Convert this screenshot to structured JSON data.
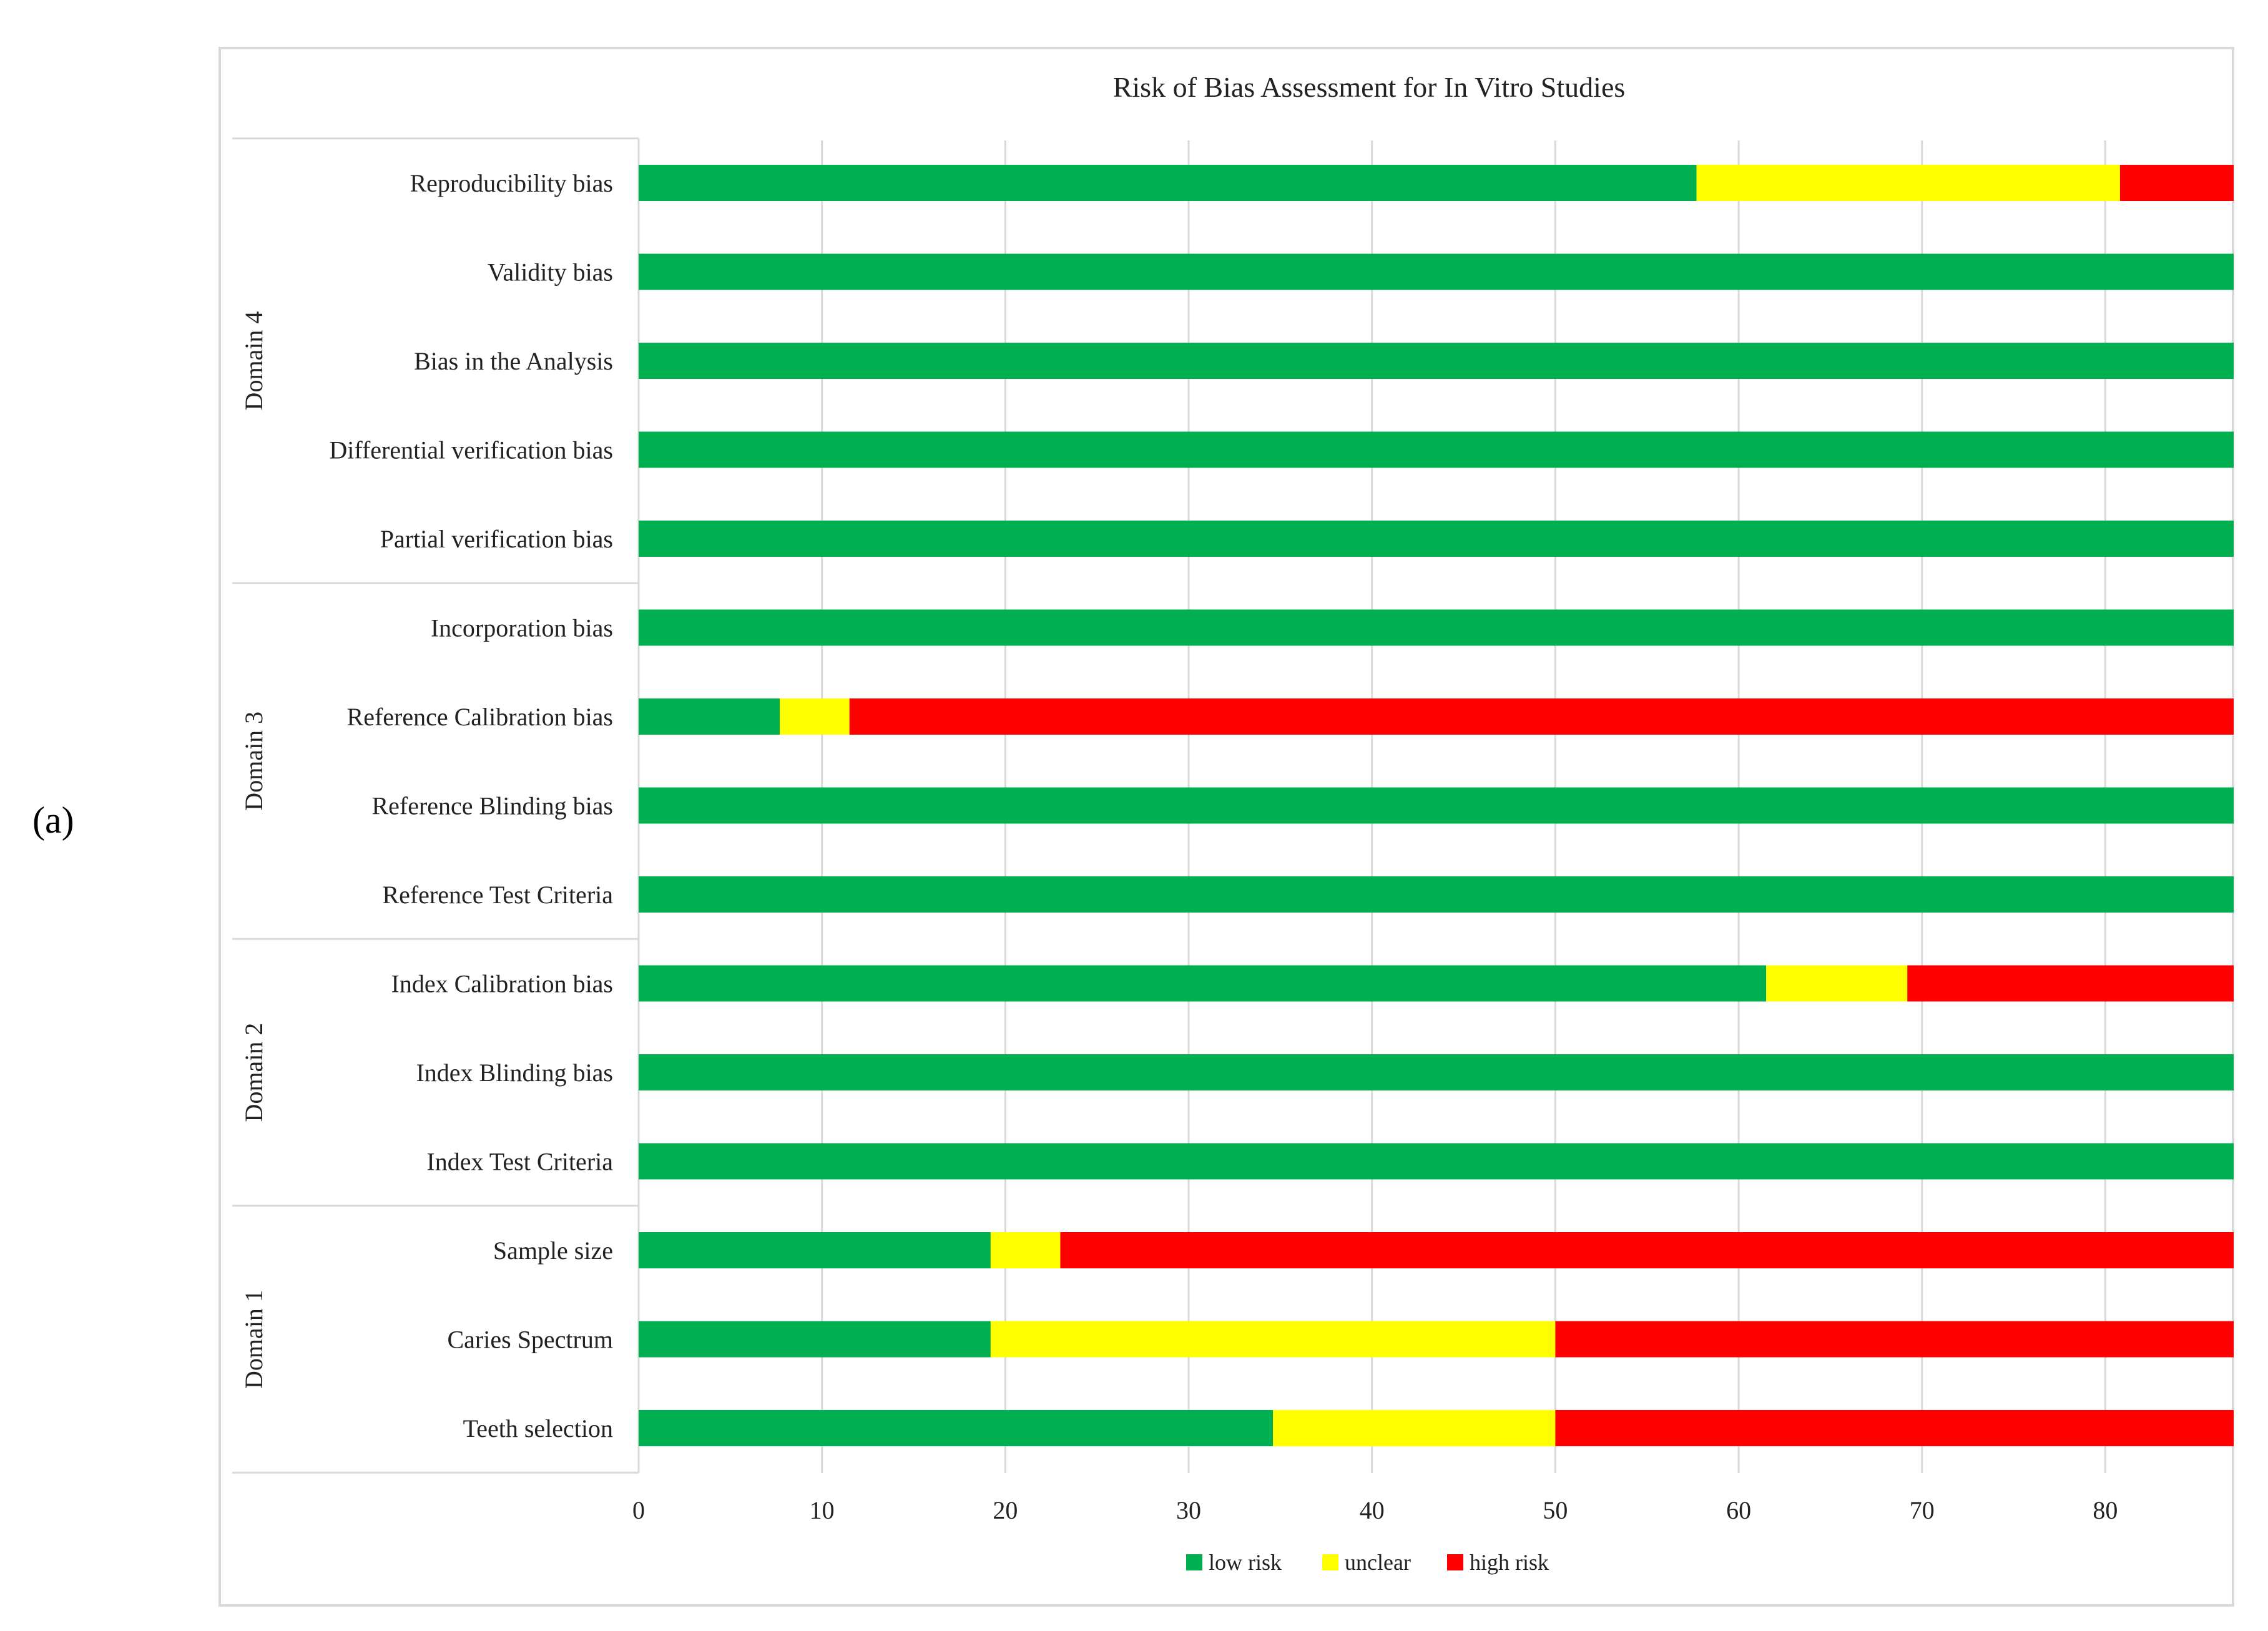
{
  "figure": {
    "panel_label": "(a)"
  },
  "chart_data": {
    "type": "bar",
    "orientation": "horizontal",
    "stacked": true,
    "title": "Risk of Bias Assessment for In Vitro Studies",
    "xlim": [
      0,
      87
    ],
    "xticks": [
      0,
      10,
      20,
      30,
      40,
      50,
      60,
      70,
      80
    ],
    "grid": true,
    "legend_position": "bottom-center",
    "colors": {
      "low risk": "#00b050",
      "unclear": "#ffff00",
      "high risk": "#ff0000",
      "grid": "#d9d9d9",
      "border": "#d9d9d9"
    },
    "series": [
      {
        "name": "low risk",
        "color": "#00b050"
      },
      {
        "name": "unclear",
        "color": "#ffff00"
      },
      {
        "name": "high risk",
        "color": "#ff0000"
      }
    ],
    "groups": [
      {
        "name": "Domain 4",
        "categories": [
          "Reproducibility bias",
          "Validity bias",
          "Bias in the Analysis",
          "Differential verification bias",
          "Partial verification bias"
        ]
      },
      {
        "name": "Domain 3",
        "categories": [
          "Incorporation bias",
          "Reference Calibration bias",
          "Reference Blinding bias",
          "Reference Test Criteria"
        ]
      },
      {
        "name": "Domain 2",
        "categories": [
          "Index Calibration bias",
          "Index Blinding bias",
          "Index Test Criteria"
        ]
      },
      {
        "name": "Domain 1",
        "categories": [
          "Sample size",
          "Caries Spectrum",
          "Teeth selection"
        ]
      }
    ],
    "rows": [
      {
        "label": "Reproducibility bias",
        "values": [
          57.7,
          23.1,
          6.2
        ]
      },
      {
        "label": "Validity bias",
        "values": [
          87,
          0,
          0
        ]
      },
      {
        "label": "Bias in the Analysis",
        "values": [
          87,
          0,
          0
        ]
      },
      {
        "label": "Differential verification bias",
        "values": [
          87,
          0,
          0
        ]
      },
      {
        "label": "Partial verification bias",
        "values": [
          87,
          0,
          0
        ]
      },
      {
        "label": "Incorporation bias",
        "values": [
          87,
          0,
          0
        ]
      },
      {
        "label": "Reference Calibration bias",
        "values": [
          7.7,
          3.8,
          75.5
        ]
      },
      {
        "label": "Reference Blinding bias",
        "values": [
          87,
          0,
          0
        ]
      },
      {
        "label": "Reference Test Criteria",
        "values": [
          87,
          0,
          0
        ]
      },
      {
        "label": "Index Calibration bias",
        "values": [
          61.5,
          7.7,
          17.8
        ]
      },
      {
        "label": "Index Blinding bias",
        "values": [
          87,
          0,
          0
        ]
      },
      {
        "label": "Index Test Criteria",
        "values": [
          87,
          0,
          0
        ]
      },
      {
        "label": "Sample size",
        "values": [
          19.2,
          3.8,
          64.0
        ]
      },
      {
        "label": "Caries Spectrum",
        "values": [
          19.2,
          30.8,
          37.0
        ]
      },
      {
        "label": "Teeth selection",
        "values": [
          34.6,
          15.4,
          37.0
        ]
      }
    ]
  }
}
